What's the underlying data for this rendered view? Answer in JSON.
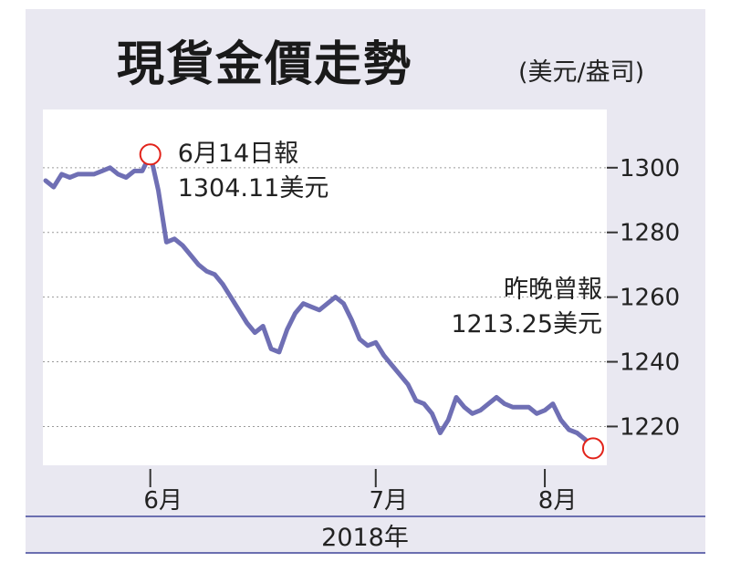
{
  "title": "現貨金價走勢",
  "unit": "(美元/盎司)",
  "year_label": "2018年",
  "colors": {
    "line": "#6f6fb4",
    "marker": "#e2231a",
    "panel": "#e9e8f1",
    "plot": "#ffffff"
  },
  "chart_data": {
    "type": "line",
    "title": "現貨金價走勢",
    "ylabel": "(美元/盎司)",
    "xlabel": "2018年",
    "ylim": [
      1208,
      1318
    ],
    "y_ticks": [
      1220,
      1240,
      1260,
      1280,
      1300
    ],
    "x_ticks": [
      {
        "label": "6月",
        "i": 13
      },
      {
        "label": "7月",
        "i": 41
      },
      {
        "label": "8月",
        "i": 62
      }
    ],
    "values": [
      1296,
      1294,
      1298,
      1297,
      1298,
      1298,
      1298,
      1299,
      1300,
      1298,
      1297,
      1299,
      1299,
      1304.11,
      1293,
      1277,
      1278,
      1276,
      1273,
      1270,
      1268,
      1267,
      1264,
      1260,
      1256,
      1252,
      1249,
      1251,
      1244,
      1243,
      1250,
      1255,
      1258,
      1257,
      1256,
      1258,
      1260,
      1258,
      1253,
      1247,
      1245,
      1246,
      1242,
      1239,
      1236,
      1233,
      1228,
      1227,
      1224,
      1218,
      1222,
      1229,
      1226,
      1224,
      1225,
      1227,
      1229,
      1227,
      1226,
      1226,
      1226,
      1224,
      1225,
      1227,
      1222,
      1219,
      1218,
      1216,
      1213.25
    ],
    "annotations": [
      {
        "i": 13,
        "line1": "6月14日報",
        "line2": "1304.11美元"
      },
      {
        "i": 68,
        "line1": "昨晚曾報",
        "line2": "1213.25美元"
      }
    ],
    "grid": true
  }
}
